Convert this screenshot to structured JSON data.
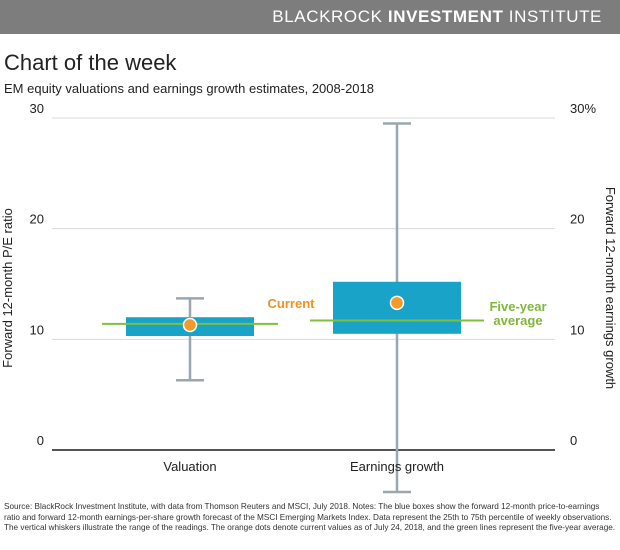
{
  "header": {
    "brand_light": "BLACKROCK ",
    "brand_bold": "INVESTMENT",
    "brand_tail": " INSTITUTE"
  },
  "page": {
    "heading": "Chart of the week",
    "subtitle": "EM equity valuations and earnings growth estimates, 2008-2018"
  },
  "colors": {
    "box": "#1aa3c8",
    "whisker": "#9aa7b1",
    "current_dot": "#f39a2a",
    "average_line": "#7fbf3f",
    "grid": "#d9d9d9",
    "axis": "#555555",
    "current_label": "#f0901e",
    "average_label": "#7fb83a"
  },
  "chart_data": {
    "type": "box",
    "ylabel_left": "Forward 12-month P/E ratio",
    "ylabel_right": "Forward 12-month earnings growth",
    "left_axis": {
      "ylim": [
        0,
        30
      ],
      "ticks": [
        "0",
        "10",
        "20",
        "30"
      ],
      "tick_values": [
        0,
        10,
        20,
        30
      ]
    },
    "right_axis": {
      "ylim": [
        0,
        30
      ],
      "ticks": [
        "0",
        "10",
        "20",
        "30%"
      ],
      "tick_values": [
        0,
        10,
        20,
        30
      ]
    },
    "grid": true,
    "categories": [
      {
        "label": "Valuation",
        "axis": "left",
        "min": 6.3,
        "q1": 10.3,
        "q3": 12.0,
        "max": 13.7,
        "current": 11.3,
        "five_year_average": 11.4
      },
      {
        "label": "Earnings growth",
        "axis": "right",
        "min": -3.8,
        "q1": 10.5,
        "q3": 15.2,
        "max": 29.5,
        "current": 13.3,
        "five_year_average": 11.7
      }
    ],
    "annotations": {
      "current": "Current",
      "average_line1": "Five-year",
      "average_line2": "average"
    }
  },
  "footer": {
    "source": "Source: BlackRock Investment Institute, with data from Thomson Reuters and MSCI, July 2018. Notes: The blue boxes show the forward 12-month price-to-earnings ratio and forward 12-month earnings-per-share growth forecast of the MSCI Emerging Markets Index. Data represent the 25th to 75th percentile of weekly observations. The vertical whiskers illustrate the range of the readings. The orange dots denote current values as of July 24, 2018, and the green lines represent the five-year average."
  }
}
